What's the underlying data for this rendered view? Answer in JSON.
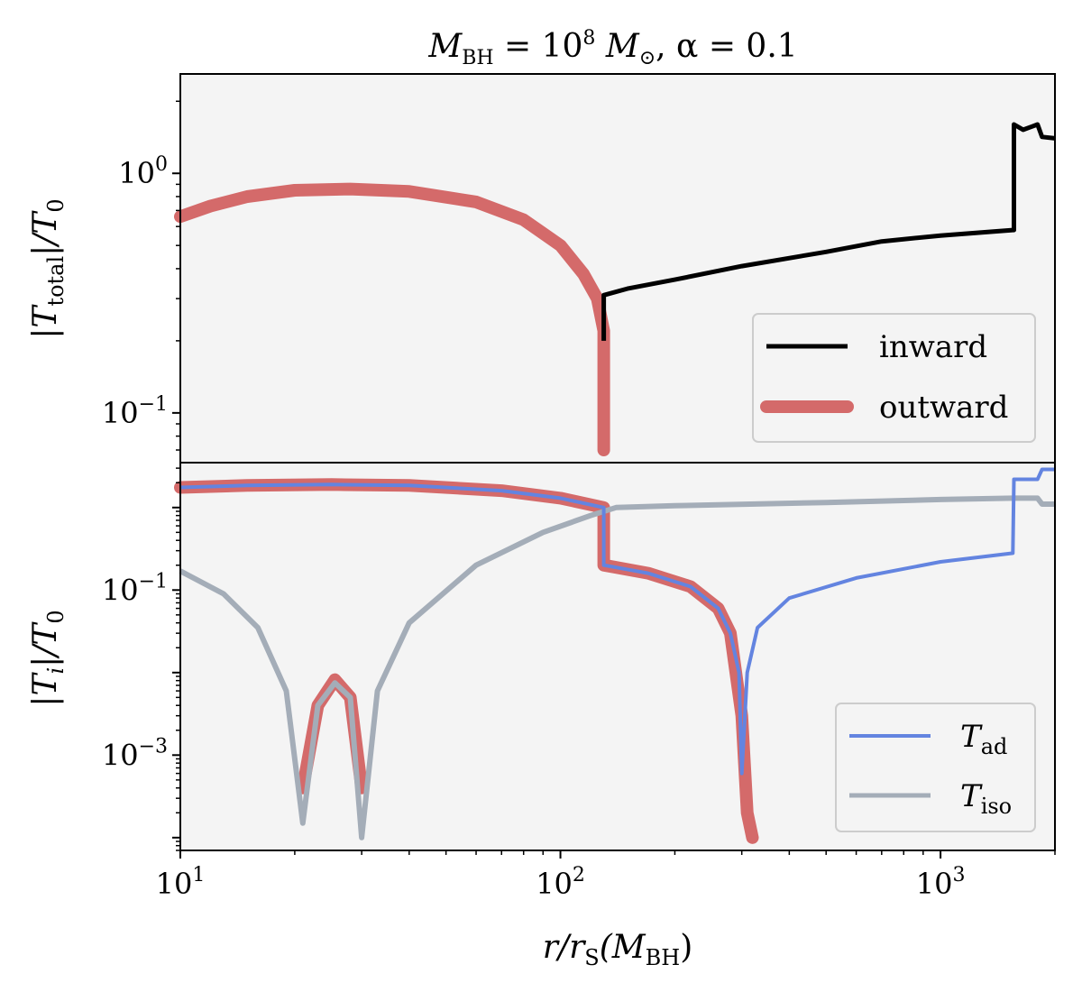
{
  "chart_data": [
    {
      "type": "line",
      "panel": "top",
      "title": "M_BH = 10^8 M_⊙, α = 0.1",
      "title_parts": {
        "m": "M",
        "m_sub": "BH",
        "eq": " = 10",
        "exp": "8",
        "msun": " M",
        "sun_sub": "⊙",
        "rest": ", α = 0.1"
      },
      "ylabel": "|T_total|/T_0",
      "ylabel_parts": {
        "t": "|T",
        "sub": "total",
        "mid": "|/T",
        "sub2": "0"
      },
      "xscale": "log",
      "yscale": "log",
      "xlim": [
        10,
        2000
      ],
      "ylim": [
        0.062,
        2.6
      ],
      "yticks": [
        {
          "base": "10",
          "exp": "0",
          "value": 1
        },
        {
          "base": "10",
          "exp": "−1",
          "value": 0.1
        }
      ],
      "legend": {
        "placement": "lower right",
        "entries": [
          "inward",
          "outward"
        ]
      },
      "series": [
        {
          "name": "inward",
          "color": "#000000",
          "points": [
            [
              130,
              0.2
            ],
            [
              130,
              0.31
            ],
            [
              150,
              0.33
            ],
            [
              200,
              0.36
            ],
            [
              300,
              0.41
            ],
            [
              500,
              0.47
            ],
            [
              700,
              0.52
            ],
            [
              1000,
              0.55
            ],
            [
              1550,
              0.58
            ],
            [
              1560,
              0.58
            ],
            [
              1560,
              1.6
            ],
            [
              1650,
              1.52
            ],
            [
              1800,
              1.6
            ],
            [
              1850,
              1.42
            ],
            [
              2000,
              1.4
            ]
          ]
        },
        {
          "name": "outward",
          "color": "#d46a6a",
          "points": [
            [
              10,
              0.66
            ],
            [
              12,
              0.73
            ],
            [
              15,
              0.8
            ],
            [
              20,
              0.85
            ],
            [
              28,
              0.86
            ],
            [
              40,
              0.84
            ],
            [
              60,
              0.76
            ],
            [
              80,
              0.64
            ],
            [
              100,
              0.5
            ],
            [
              115,
              0.38
            ],
            [
              125,
              0.3
            ],
            [
              130,
              0.22
            ],
            [
              130,
              0.07
            ]
          ]
        }
      ]
    },
    {
      "type": "line",
      "panel": "bottom",
      "xlabel": "r/r_S(M_BH)",
      "xlabel_parts": {
        "r": "r/r",
        "sub": "S",
        "mid": "(M",
        "sub2": "BH",
        "end": ")"
      },
      "ylabel": "|T_i|/T_0",
      "ylabel_parts": {
        "t": "|T",
        "sub": "i",
        "mid": "|/T",
        "sub2": "0"
      },
      "xscale": "log",
      "yscale": "log",
      "xlim": [
        10,
        2000
      ],
      "ylim": [
        7e-05,
        3.5
      ],
      "xticks": [
        {
          "base": "10",
          "exp": "1",
          "value": 10
        },
        {
          "base": "10",
          "exp": "2",
          "value": 100
        },
        {
          "base": "10",
          "exp": "3",
          "value": 1000
        }
      ],
      "yticks": [
        {
          "base": "10",
          "exp": "−1",
          "value": 0.1
        },
        {
          "base": "10",
          "exp": "−3",
          "value": 0.001
        }
      ],
      "legend": {
        "placement": "lower right",
        "entries": [
          "T_ad",
          "T_iso"
        ]
      },
      "series": [
        {
          "name": "T_ad",
          "legend_parts": {
            "t": "T",
            "sub": "ad"
          },
          "color": "#6384e0",
          "points": [
            [
              10,
              1.75
            ],
            [
              15,
              1.85
            ],
            [
              25,
              1.9
            ],
            [
              40,
              1.85
            ],
            [
              70,
              1.6
            ],
            [
              100,
              1.3
            ],
            [
              130,
              1.0
            ],
            [
              130,
              0.2
            ],
            [
              170,
              0.16
            ],
            [
              220,
              0.11
            ],
            [
              260,
              0.06
            ],
            [
              280,
              0.03
            ],
            [
              295,
              0.01
            ],
            [
              300,
              0.0006
            ],
            [
              310,
              0.01
            ],
            [
              330,
              0.035
            ],
            [
              400,
              0.08
            ],
            [
              600,
              0.14
            ],
            [
              1000,
              0.22
            ],
            [
              1550,
              0.28
            ],
            [
              1560,
              2.2
            ],
            [
              1800,
              2.2
            ],
            [
              1850,
              2.9
            ],
            [
              2000,
              2.9
            ]
          ]
        },
        {
          "name": "T_iso",
          "legend_parts": {
            "t": "T",
            "sub": "iso"
          },
          "color": "#a4adb8",
          "points": [
            [
              10,
              0.17
            ],
            [
              13,
              0.09
            ],
            [
              16,
              0.035
            ],
            [
              19,
              0.006
            ],
            [
              21,
              0.00015
            ],
            [
              23,
              0.004
            ],
            [
              25.5,
              0.0075
            ],
            [
              28,
              0.005
            ],
            [
              30,
              0.0001
            ],
            [
              33,
              0.006
            ],
            [
              40,
              0.04
            ],
            [
              60,
              0.2
            ],
            [
              90,
              0.5
            ],
            [
              120,
              0.8
            ],
            [
              140,
              1.0
            ],
            [
              200,
              1.05
            ],
            [
              500,
              1.15
            ],
            [
              1000,
              1.25
            ],
            [
              1550,
              1.3
            ],
            [
              1800,
              1.3
            ],
            [
              1850,
              1.1
            ],
            [
              2000,
              1.1
            ]
          ]
        },
        {
          "name": "outward",
          "color": "#d46a6a",
          "points": [
            [
              10,
              1.75
            ],
            [
              15,
              1.85
            ],
            [
              25,
              1.9
            ],
            [
              40,
              1.85
            ],
            [
              70,
              1.6
            ],
            [
              100,
              1.3
            ],
            [
              130,
              1.0
            ],
            [
              130,
              0.2
            ],
            [
              170,
              0.16
            ],
            [
              220,
              0.11
            ],
            [
              260,
              0.06
            ],
            [
              280,
              0.03
            ],
            [
              300,
              0.003
            ],
            [
              310,
              0.0002
            ],
            [
              320,
              0.0001
            ]
          ]
        },
        {
          "name": "outward-hump",
          "color": "#d46a6a",
          "points": [
            [
              21,
              0.0004
            ],
            [
              23,
              0.004
            ],
            [
              25.5,
              0.0082
            ],
            [
              28,
              0.005
            ],
            [
              30,
              0.0004
            ]
          ]
        }
      ]
    }
  ]
}
